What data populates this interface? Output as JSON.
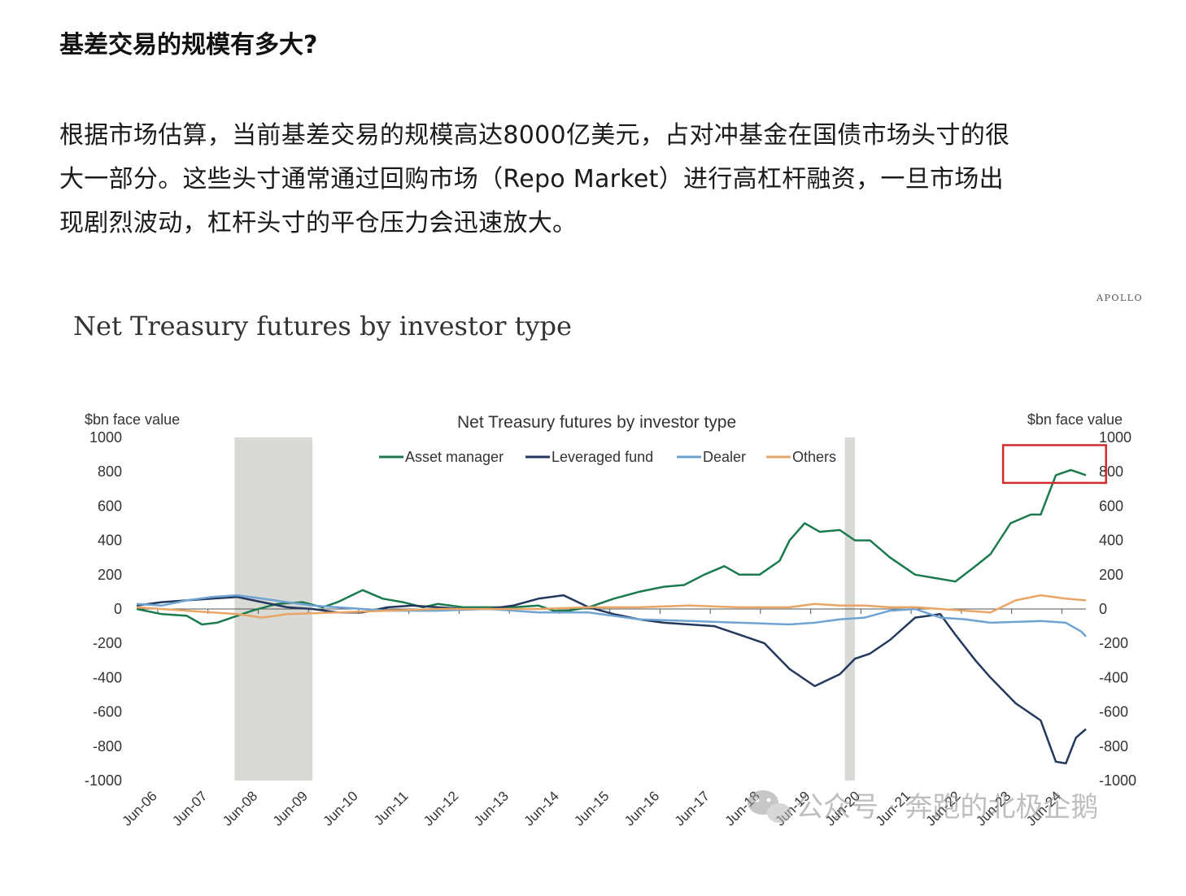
{
  "article": {
    "heading": "基差交易的规模有多大?",
    "paragraph_lines": [
      "根据市场估算，当前基差交易的规模高达8000亿美元，占对冲基金在国债市场头寸的很",
      "大一部分。这些头寸通常通过回购市场（Repo Market）进行高杠杆融资，一旦市场出",
      "现剧烈波动，杠杆头寸的平仓压力会迅速放大。"
    ]
  },
  "figure": {
    "brand": "APOLLO",
    "slide_title": "Net Treasury futures by investor type",
    "watermark": "公众号 · 奔跑的北极企鹅"
  },
  "chart_data": {
    "type": "line",
    "title": "Net Treasury futures by investor type",
    "ylabel_left": "$bn face value",
    "ylabel_right": "$bn face value",
    "ylim": [
      -1000,
      1000
    ],
    "y_ticks": [
      1000,
      800,
      600,
      400,
      200,
      0,
      -200,
      -400,
      -600,
      -800,
      -1000
    ],
    "x_ticks": [
      "Jun-06",
      "Jun-07",
      "Jun-08",
      "Jun-09",
      "Jun-10",
      "Jun-11",
      "Jun-12",
      "Jun-13",
      "Jun-14",
      "Jun-15",
      "Jun-16",
      "Jun-17",
      "Jun-18",
      "Jun-19",
      "Jun-20",
      "Jun-21",
      "Jun-22",
      "Jun-23",
      "Jun-24"
    ],
    "xlim": [
      2006.0,
      2024.9
    ],
    "legend_position": "top-center",
    "grid": false,
    "shaded_periods": [
      [
        2007.95,
        2009.5
      ],
      [
        2020.1,
        2020.3
      ]
    ],
    "highlight_box": {
      "label": "800",
      "x_range": [
        2023.25,
        2025.3
      ],
      "y_range": [
        735,
        955
      ]
    },
    "series": [
      {
        "name": "Asset manager",
        "color": "#1b7a4e",
        "x": [
          2006.0,
          2006.5,
          2007.0,
          2007.3,
          2007.6,
          2008.0,
          2008.3,
          2008.8,
          2009.3,
          2009.7,
          2010.0,
          2010.5,
          2010.9,
          2011.3,
          2011.7,
          2012.0,
          2012.5,
          2013.0,
          2013.5,
          2014.0,
          2014.3,
          2014.6,
          2015.0,
          2015.5,
          2016.0,
          2016.5,
          2016.9,
          2017.3,
          2017.7,
          2018.0,
          2018.4,
          2018.8,
          2019.0,
          2019.3,
          2019.6,
          2020.0,
          2020.3,
          2020.6,
          2021.0,
          2021.5,
          2021.9,
          2022.3,
          2022.7,
          2023.0,
          2023.4,
          2023.8,
          2024.0,
          2024.3,
          2024.6,
          2024.9
        ],
        "values": [
          0,
          -30,
          -40,
          -90,
          -80,
          -40,
          -10,
          30,
          40,
          10,
          40,
          110,
          60,
          40,
          10,
          30,
          10,
          10,
          10,
          20,
          -10,
          -10,
          10,
          60,
          100,
          130,
          140,
          200,
          250,
          200,
          200,
          280,
          400,
          500,
          450,
          460,
          400,
          400,
          300,
          200,
          180,
          160,
          250,
          320,
          500,
          550,
          550,
          780,
          810,
          780
        ]
      },
      {
        "name": "Leveraged fund",
        "color": "#22385c",
        "x": [
          2006.0,
          2006.5,
          2007.0,
          2007.5,
          2008.0,
          2008.5,
          2009.0,
          2009.5,
          2010.0,
          2010.5,
          2011.0,
          2011.5,
          2012.0,
          2012.5,
          2013.0,
          2013.5,
          2014.0,
          2014.5,
          2015.0,
          2015.5,
          2016.0,
          2016.5,
          2017.0,
          2017.5,
          2018.0,
          2018.5,
          2019.0,
          2019.5,
          2020.0,
          2020.3,
          2020.6,
          2021.0,
          2021.5,
          2022.0,
          2022.3,
          2022.7,
          2023.0,
          2023.5,
          2024.0,
          2024.3,
          2024.5,
          2024.7,
          2024.9
        ],
        "values": [
          20,
          40,
          50,
          60,
          70,
          40,
          10,
          0,
          -20,
          -20,
          10,
          20,
          10,
          0,
          0,
          20,
          60,
          80,
          10,
          -30,
          -60,
          -80,
          -90,
          -100,
          -150,
          -200,
          -350,
          -450,
          -380,
          -290,
          -260,
          -180,
          -50,
          -30,
          -150,
          -300,
          -400,
          -550,
          -650,
          -890,
          -900,
          -750,
          -700
        ]
      },
      {
        "name": "Dealer",
        "color": "#6fa3d2",
        "x": [
          2006.0,
          2006.5,
          2007.0,
          2007.5,
          2008.0,
          2008.5,
          2009.0,
          2009.5,
          2010.0,
          2011.0,
          2012.0,
          2013.0,
          2014.0,
          2014.5,
          2015.0,
          2016.0,
          2017.0,
          2018.0,
          2019.0,
          2019.5,
          2020.0,
          2020.5,
          2021.0,
          2021.5,
          2022.0,
          2022.5,
          2023.0,
          2024.0,
          2024.5,
          2024.8,
          2024.9
        ],
        "values": [
          30,
          20,
          50,
          70,
          80,
          60,
          40,
          20,
          10,
          -10,
          -10,
          0,
          -20,
          -20,
          -20,
          -60,
          -70,
          -80,
          -90,
          -80,
          -60,
          -50,
          -10,
          0,
          -50,
          -60,
          -80,
          -70,
          -80,
          -130,
          -160
        ]
      },
      {
        "name": "Others",
        "color": "#e8a565",
        "x": [
          2006.0,
          2007.0,
          2008.0,
          2008.5,
          2009.0,
          2010.0,
          2011.0,
          2012.0,
          2013.0,
          2014.0,
          2015.0,
          2016.0,
          2017.0,
          2018.0,
          2019.0,
          2019.5,
          2020.0,
          2020.5,
          2021.0,
          2021.5,
          2022.0,
          2022.5,
          2023.0,
          2023.5,
          2024.0,
          2024.5,
          2024.9
        ],
        "values": [
          10,
          -10,
          -30,
          -50,
          -30,
          -20,
          -10,
          0,
          0,
          0,
          10,
          10,
          20,
          10,
          10,
          30,
          20,
          20,
          10,
          10,
          0,
          -10,
          -20,
          50,
          80,
          60,
          50
        ]
      }
    ]
  }
}
